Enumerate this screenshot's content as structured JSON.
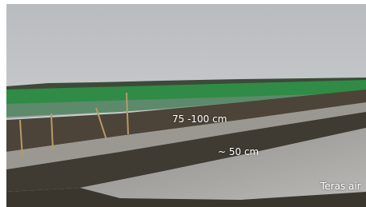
{
  "labels": [
    "75 -100 cm",
    "~ 50 cm",
    "Teras air"
  ]
}
